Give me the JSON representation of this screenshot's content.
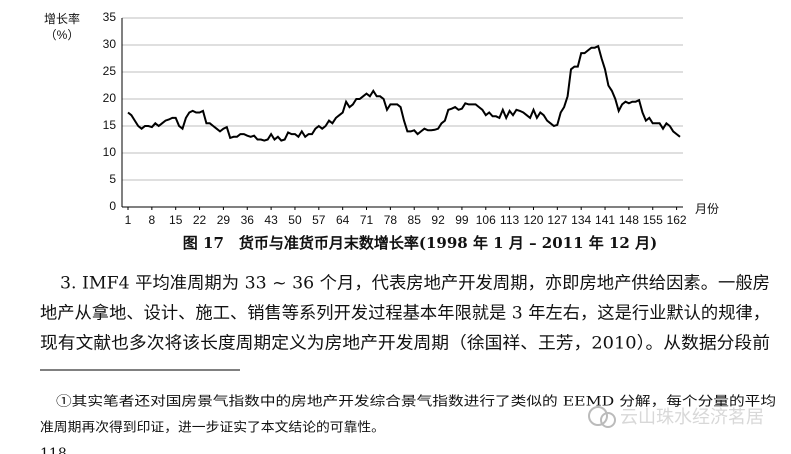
{
  "chart_data": {
    "type": "line",
    "y_label_line1": "增长率",
    "y_label_line2": "（%）",
    "x_label": "月份",
    "caption": "图 17　货币与准货币月末数增长率(1998 年 1 月 – 2011 年 12 月)",
    "color": "#000000",
    "grid": true,
    "xlim": [
      1,
      163
    ],
    "xticks": [
      1,
      8,
      15,
      22,
      29,
      36,
      43,
      50,
      57,
      64,
      71,
      78,
      85,
      92,
      99,
      106,
      113,
      120,
      127,
      134,
      141,
      148,
      155,
      162
    ],
    "ylim": [
      0,
      35
    ],
    "yticks": [
      0,
      5,
      10,
      15,
      20,
      25,
      30,
      35
    ],
    "x": [
      1,
      2,
      3,
      4,
      5,
      6,
      7,
      8,
      9,
      10,
      11,
      12,
      13,
      14,
      15,
      16,
      17,
      18,
      19,
      20,
      21,
      22,
      23,
      24,
      25,
      26,
      27,
      28,
      29,
      30,
      31,
      32,
      33,
      34,
      35,
      36,
      37,
      38,
      39,
      40,
      41,
      42,
      43,
      44,
      45,
      46,
      47,
      48,
      49,
      50,
      51,
      52,
      53,
      54,
      55,
      56,
      57,
      58,
      59,
      60,
      61,
      62,
      63,
      64,
      65,
      66,
      67,
      68,
      69,
      70,
      71,
      72,
      73,
      74,
      75,
      76,
      77,
      78,
      79,
      80,
      81,
      82,
      83,
      84,
      85,
      86,
      87,
      88,
      89,
      90,
      91,
      92,
      93,
      94,
      95,
      96,
      97,
      98,
      99,
      100,
      101,
      102,
      103,
      104,
      105,
      106,
      107,
      108,
      109,
      110,
      111,
      112,
      113,
      114,
      115,
      116,
      117,
      118,
      119,
      120,
      121,
      122,
      123,
      124,
      125,
      126,
      127,
      128,
      129,
      130,
      131,
      132,
      133,
      134,
      135,
      136,
      137,
      138,
      139,
      140,
      141,
      142,
      143,
      144,
      145,
      146,
      147,
      148,
      149,
      150,
      151,
      152,
      153,
      154,
      155,
      156,
      157,
      158,
      159,
      160,
      161,
      162,
      163
    ],
    "values": [
      17.5,
      17,
      16,
      15,
      14.5,
      15,
      15,
      14.8,
      15.5,
      15,
      15.5,
      16,
      16.2,
      16.5,
      16.5,
      15,
      14.5,
      16.5,
      17.5,
      17.8,
      17.5,
      17.5,
      17.8,
      15.5,
      15.5,
      15,
      14.5,
      14,
      14.5,
      14.8,
      12.8,
      13,
      13,
      13.5,
      13.5,
      13.2,
      13,
      13.2,
      12.5,
      12.5,
      12.3,
      12.5,
      13.5,
      12.5,
      13,
      12.3,
      12.5,
      13.8,
      13.5,
      13.5,
      13,
      14,
      13,
      13.5,
      13.5,
      14.5,
      15,
      14.5,
      15,
      16,
      15.5,
      16.5,
      17,
      17.5,
      19.5,
      18.5,
      19,
      20,
      20,
      20.5,
      21,
      20.5,
      21.5,
      20.5,
      20.5,
      20,
      18,
      19,
      19,
      19,
      18.5,
      16,
      14,
      14,
      14.2,
      13.5,
      14,
      14.5,
      14.2,
      14.2,
      14.3,
      14.5,
      15.5,
      16,
      18,
      18.2,
      18.5,
      18,
      18.2,
      19.2,
      19,
      19,
      19,
      18.5,
      18,
      17,
      17.5,
      16.8,
      16.8,
      16.5,
      18,
      16.5,
      17.8,
      17,
      18,
      17.8,
      17.5,
      17,
      16.5,
      18,
      16.5,
      17.5,
      17,
      16,
      15.5,
      15,
      15.2,
      17.5,
      18.5,
      20.5,
      25.5,
      26,
      26,
      28.5,
      28.5,
      29,
      29.5,
      29.5,
      29.8,
      27.5,
      25.5,
      22.5,
      21.5,
      20,
      17.8,
      19,
      19.5,
      19.2,
      19.5,
      19.5,
      19.8,
      17.5,
      16,
      16.5,
      15.5,
      15.5,
      15.5,
      14.5,
      15.5,
      15,
      14,
      13.5,
      13
    ]
  },
  "paragraph": [
    "3. IMF4 平均准周期为 33 ~ 36 个月，代表房地产开发周期，亦即房地产供给因素。一般房",
    "地产从拿地、设计、施工、销售等系列开发过程基本年限就是 3 年左右，这是行业默认的规律，",
    "现有文献也多次将该长度周期定义为房地产开发周期（徐国祥、王芳，2010）。从数据分段前"
  ],
  "footnote": [
    "①其实笔者还对国房景气指数中的房地产开发综合景气指数进行了类似的 EEMD 分解，每个分量的平均",
    "准周期再次得到印证，进一步证实了本文结论的可靠性。"
  ],
  "watermark": "云山珠水经济茗居",
  "page_number": "118"
}
